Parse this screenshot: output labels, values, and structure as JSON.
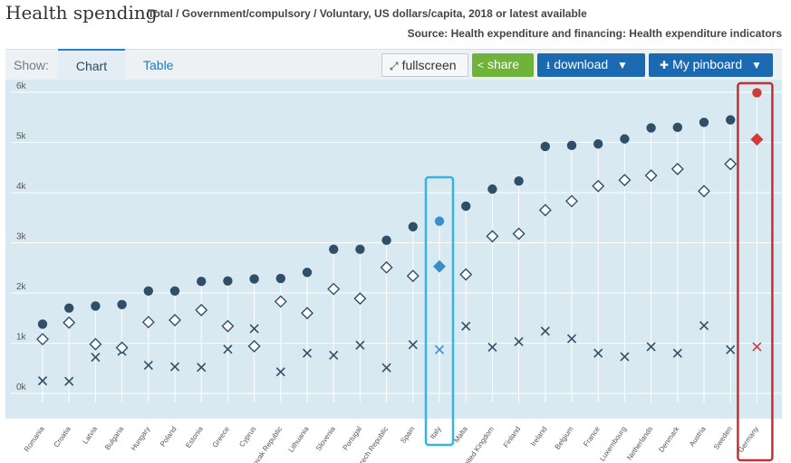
{
  "header": {
    "title": "Health spending",
    "subtitle": "Total / Government/compulsory / Voluntary, US dollars/capita, 2018 or latest available",
    "source": "Source: Health expenditure and financing: Health expenditure indicators"
  },
  "toolbar": {
    "show_label": "Show:",
    "tab_chart": "Chart",
    "tab_table": "Table",
    "fullscreen_label": "fullscreen",
    "share_label": "share",
    "download_label": "download",
    "pinboard_label": "My pinboard"
  },
  "colors": {
    "base": "#2f4f68",
    "italy": "#3a8ec9",
    "germany": "#d23a3a",
    "plot_bg": "#d9e9f1",
    "italy_box": "#35b4e3",
    "germany_box": "#c73030"
  },
  "chart_data": {
    "type": "scatter",
    "categories": [
      "Romania",
      "Croatia",
      "Latvia",
      "Bulgaria",
      "Hungary",
      "Poland",
      "Estonia",
      "Greece",
      "Cyprus",
      "Slovak Republic",
      "Lithuania",
      "Slovenia",
      "Portugal",
      "Czech Republic",
      "Spain",
      "Italy",
      "Malta",
      "United Kingdom",
      "Finland",
      "Ireland",
      "Belgium",
      "France",
      "Luxembourg",
      "Netherlands",
      "Denmark",
      "Austria",
      "Sweden",
      "Germany"
    ],
    "y_tick_labels": [
      "0k",
      "1k",
      "2k",
      "3k",
      "4k",
      "5k",
      "6k"
    ],
    "ylim": [
      0,
      6000
    ],
    "highlighted": [
      "Italy",
      "Germany"
    ],
    "series": [
      {
        "marker": "filled-circle",
        "values": [
          1380,
          1700,
          1740,
          1770,
          2040,
          2040,
          2230,
          2240,
          2280,
          2290,
          2410,
          2870,
          2870,
          3050,
          3320,
          3430,
          3730,
          4070,
          4230,
          4920,
          4940,
          4970,
          5070,
          5290,
          5300,
          5400,
          5450,
          5990
        ]
      },
      {
        "marker": "hollow-diamond",
        "values": [
          1080,
          1410,
          980,
          910,
          1420,
          1460,
          1660,
          1340,
          940,
          1830,
          1600,
          2080,
          1890,
          2510,
          2340,
          2530,
          2370,
          3130,
          3180,
          3650,
          3830,
          4130,
          4250,
          4340,
          4470,
          4030,
          4570,
          5060
        ]
      },
      {
        "marker": "x-cross",
        "values": [
          250,
          240,
          720,
          840,
          560,
          530,
          520,
          880,
          1290,
          430,
          800,
          760,
          960,
          510,
          970,
          870,
          1340,
          920,
          1030,
          1240,
          1090,
          800,
          730,
          930,
          800,
          1350,
          870,
          930
        ]
      }
    ]
  }
}
